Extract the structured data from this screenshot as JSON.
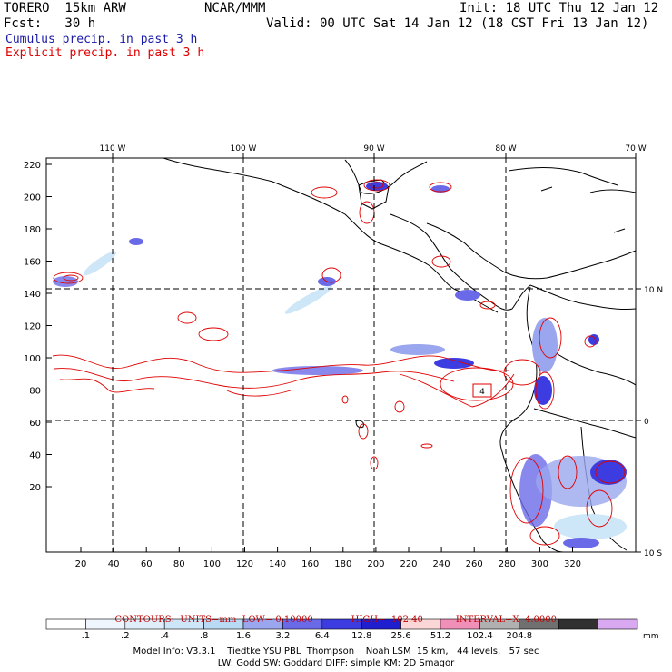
{
  "header": {
    "model_name": "TORERO  15km ARW",
    "org": "NCAR/MMM",
    "init": "Init: 18 UTC Thu 12 Jan 12",
    "fcst": "Fcst:   30 h",
    "valid": "Valid: 00 UTC Sat 14 Jan 12 (18 CST Fri 13 Jan 12)"
  },
  "legend": {
    "cumulus": "Cumulus precip. in past 3 h",
    "explicit": "Explicit precip. in past 3 h"
  },
  "top_axis": [
    "110 W",
    "100 W",
    "90 W",
    "80 W",
    "70 W"
  ],
  "right_axis": [
    "10 N",
    "0",
    "10 S"
  ],
  "left_axis": [
    "220",
    "200",
    "180",
    "160",
    "140",
    "120",
    "100",
    "80",
    "60",
    "40",
    "20"
  ],
  "bottom_axis": [
    "20",
    "40",
    "60",
    "80",
    "100",
    "120",
    "140",
    "160",
    "180",
    "200",
    "220",
    "240",
    "260",
    "280",
    "300",
    "320"
  ],
  "box_label": "4",
  "contours": {
    "title": "CONTOURS:  UNITS=mm  LOW= 0.10000",
    "high": "HIGH=  102.40",
    "interval": "INTERVAL=X  4.0000"
  },
  "colorbar": {
    "labels": [
      ".1",
      ".2",
      ".4",
      ".8",
      "1.6",
      "3.2",
      "6.4",
      "12.8",
      "25.6",
      "51.2",
      "102.4",
      "204.8"
    ],
    "unit": "mm",
    "colors": [
      "#ffffff",
      "#eef5fc",
      "#dfeefa",
      "#cde6f8",
      "#b8daf4",
      "#9aa6ee",
      "#6a6ae8",
      "#3c3ce0",
      "#1f1fd0",
      "#fbd6d6",
      "#f090b8",
      "#b0b0b0",
      "#707070",
      "#303030",
      "#d8a8f0"
    ]
  },
  "footer": {
    "line1": "Model Info: V3.3.1    Tiedtke YSU PBL  Thompson    Noah LSM  15 km,   44 levels,   57 sec",
    "line2": "LW: Godd SW: Goddard DIFF: simple KM: 2D Smagor"
  }
}
